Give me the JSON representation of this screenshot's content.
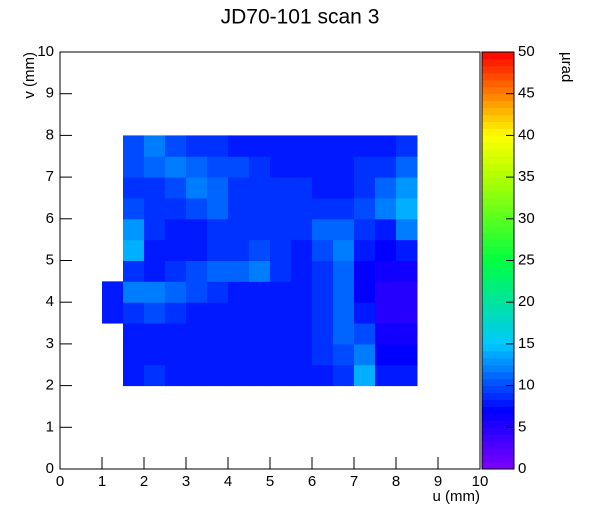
{
  "chart_data": {
    "type": "heatmap",
    "title": "JD70-101 scan 3",
    "x_label": "u (mm)",
    "y_label": "v (mm)",
    "z_label": "µrad",
    "xlim": [
      0,
      10
    ],
    "ylim": [
      0,
      10
    ],
    "zlim": [
      0,
      50
    ],
    "xticks": [
      0,
      1,
      2,
      3,
      4,
      5,
      6,
      7,
      8,
      9,
      10
    ],
    "yticks": [
      0,
      1,
      2,
      3,
      4,
      5,
      6,
      7,
      8,
      9,
      10
    ],
    "zticks": [
      0,
      5,
      10,
      15,
      20,
      25,
      30,
      35,
      40,
      45,
      50
    ],
    "xbins": [
      1,
      1.5,
      2,
      2.5,
      3,
      3.5,
      4,
      4.5,
      5,
      5.5,
      6,
      6.5,
      7,
      7.5,
      8,
      8.5
    ],
    "ybins": [
      2,
      2.5,
      3,
      3.5,
      4,
      4.5,
      5,
      5.5,
      6,
      6.5,
      7,
      7.5,
      8
    ],
    "z": [
      [
        null,
        8,
        9,
        8,
        8,
        8,
        8,
        8,
        8,
        8,
        8,
        9,
        14,
        8,
        8
      ],
      [
        null,
        8,
        8,
        8,
        8,
        8,
        8,
        8,
        8,
        8,
        9,
        10,
        12,
        7,
        7
      ],
      [
        null,
        8,
        8,
        8,
        8,
        8,
        8,
        8,
        8,
        8,
        9,
        11,
        10,
        6,
        6
      ],
      [
        8,
        9,
        10,
        9,
        8,
        8,
        8,
        8,
        8,
        8,
        9,
        11,
        8,
        5,
        5
      ],
      [
        8,
        12,
        12,
        11,
        10,
        9,
        8,
        8,
        8,
        8,
        9,
        11,
        7,
        5,
        5
      ],
      [
        null,
        9,
        8,
        9,
        10,
        11,
        11,
        12,
        9,
        8,
        9,
        11,
        7,
        6,
        6
      ],
      [
        null,
        14,
        8,
        8,
        8,
        9,
        9,
        10,
        9,
        8,
        10,
        12,
        8,
        7,
        8
      ],
      [
        null,
        13,
        9,
        8,
        8,
        9,
        9,
        9,
        9,
        9,
        11,
        11,
        9,
        8,
        12
      ],
      [
        null,
        10,
        9,
        9,
        10,
        11,
        9,
        9,
        9,
        9,
        9,
        9,
        10,
        12,
        14
      ],
      [
        null,
        9,
        9,
        10,
        12,
        11,
        9,
        9,
        9,
        9,
        8,
        8,
        9,
        11,
        13
      ],
      [
        null,
        10,
        11,
        12,
        11,
        10,
        10,
        9,
        8,
        8,
        8,
        8,
        9,
        9,
        11
      ],
      [
        null,
        10,
        12,
        10,
        9,
        9,
        8,
        8,
        8,
        8,
        8,
        8,
        8,
        8,
        9
      ]
    ]
  }
}
